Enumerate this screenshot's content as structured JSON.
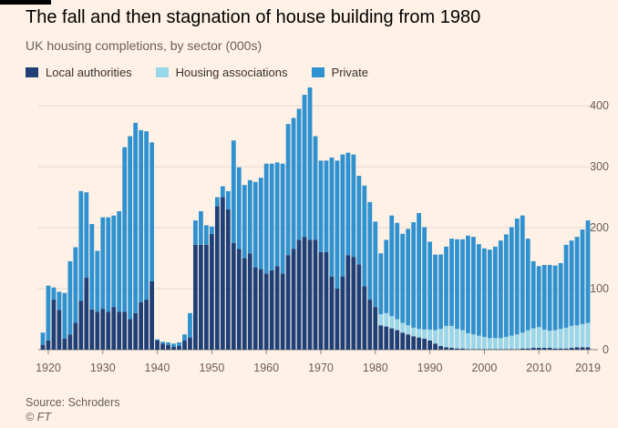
{
  "header": {
    "title": "The fall and then stagnation of house building from 1980",
    "subtitle": "UK housing completions, by sector (000s)"
  },
  "footer": {
    "source": "Source: Schroders",
    "credit": "© FT"
  },
  "colors": {
    "background": "#fff1e5",
    "local_authorities": "#1f3f77",
    "housing_associations": "#98d6ea",
    "private": "#2e91d0",
    "gridline": "#e4d8ce"
  },
  "chart_data": {
    "type": "bar",
    "stacked": true,
    "title": "The fall and then stagnation of house building from 1980",
    "subtitle": "UK housing completions, by sector (000s)",
    "legend_position": "top-left",
    "grid": true,
    "y_axis_side": "right",
    "ylim": [
      0,
      430
    ],
    "yticks": [
      0,
      100,
      200,
      300,
      400
    ],
    "xticks": [
      1920,
      1930,
      1940,
      1950,
      1960,
      1970,
      1980,
      1990,
      2000,
      2010,
      2019
    ],
    "years": [
      1919,
      1920,
      1921,
      1922,
      1923,
      1924,
      1925,
      1926,
      1927,
      1928,
      1929,
      1930,
      1931,
      1932,
      1933,
      1934,
      1935,
      1936,
      1937,
      1938,
      1939,
      1940,
      1941,
      1942,
      1943,
      1944,
      1945,
      1946,
      1947,
      1948,
      1949,
      1950,
      1951,
      1952,
      1953,
      1954,
      1955,
      1956,
      1957,
      1958,
      1959,
      1960,
      1961,
      1962,
      1963,
      1964,
      1965,
      1966,
      1967,
      1968,
      1969,
      1970,
      1971,
      1972,
      1973,
      1974,
      1975,
      1976,
      1977,
      1978,
      1979,
      1980,
      1981,
      1982,
      1983,
      1984,
      1985,
      1986,
      1987,
      1988,
      1989,
      1990,
      1991,
      1992,
      1993,
      1994,
      1995,
      1996,
      1997,
      1998,
      1999,
      2000,
      2001,
      2002,
      2003,
      2004,
      2005,
      2006,
      2007,
      2008,
      2009,
      2010,
      2011,
      2012,
      2013,
      2014,
      2015,
      2016,
      2017,
      2018,
      2019
    ],
    "series": [
      {
        "name": "Local authorities",
        "values": [
          8,
          15,
          82,
          65,
          18,
          25,
          44,
          80,
          118,
          66,
          62,
          67,
          62,
          70,
          62,
          62,
          50,
          60,
          78,
          82,
          112,
          15,
          10,
          8,
          5,
          6,
          15,
          20,
          172,
          172,
          172,
          190,
          235,
          250,
          230,
          175,
          165,
          150,
          158,
          135,
          132,
          125,
          130,
          137,
          125,
          155,
          165,
          180,
          185,
          180,
          180,
          160,
          160,
          120,
          100,
          120,
          155,
          152,
          140,
          104,
          82,
          70,
          40,
          38,
          35,
          32,
          28,
          25,
          22,
          20,
          18,
          15,
          10,
          6,
          4,
          3,
          2,
          2,
          1,
          1,
          1,
          1,
          1,
          1,
          1,
          1,
          1,
          1,
          2,
          2,
          3,
          3,
          3,
          3,
          2,
          2,
          2,
          3,
          4,
          4,
          4
        ]
      },
      {
        "name": "Housing associations",
        "values": [
          0,
          0,
          0,
          0,
          0,
          0,
          0,
          0,
          0,
          0,
          0,
          0,
          0,
          0,
          0,
          0,
          0,
          0,
          0,
          0,
          0,
          0,
          0,
          0,
          0,
          0,
          0,
          0,
          0,
          0,
          0,
          0,
          0,
          0,
          0,
          0,
          0,
          0,
          0,
          0,
          0,
          0,
          0,
          0,
          0,
          0,
          0,
          0,
          0,
          0,
          0,
          0,
          0,
          0,
          0,
          0,
          0,
          0,
          0,
          0,
          0,
          0,
          18,
          22,
          20,
          18,
          16,
          15,
          14,
          14,
          15,
          18,
          22,
          28,
          35,
          36,
          32,
          30,
          26,
          24,
          22,
          20,
          18,
          18,
          18,
          20,
          22,
          24,
          26,
          30,
          32,
          34,
          30,
          28,
          30,
          32,
          34,
          36,
          36,
          38,
          40
        ]
      },
      {
        "name": "Private",
        "values": [
          20,
          90,
          20,
          30,
          75,
          120,
          124,
          180,
          140,
          140,
          100,
          150,
          155,
          150,
          165,
          270,
          300,
          312,
          282,
          276,
          228,
          2,
          3,
          4,
          5,
          6,
          10,
          40,
          40,
          55,
          32,
          12,
          15,
          18,
          30,
          168,
          134,
          120,
          120,
          140,
          150,
          180,
          175,
          170,
          180,
          215,
          215,
          215,
          233,
          262,
          170,
          150,
          150,
          195,
          210,
          200,
          168,
          168,
          145,
          165,
          160,
          140,
          100,
          120,
          165,
          158,
          146,
          158,
          173,
          190,
          168,
          144,
          124,
          122,
          130,
          143,
          147,
          149,
          160,
          160,
          150,
          145,
          145,
          150,
          160,
          168,
          178,
          190,
          192,
          150,
          110,
          100,
          106,
          108,
          106,
          108,
          136,
          140,
          145,
          155,
          168
        ]
      }
    ]
  }
}
